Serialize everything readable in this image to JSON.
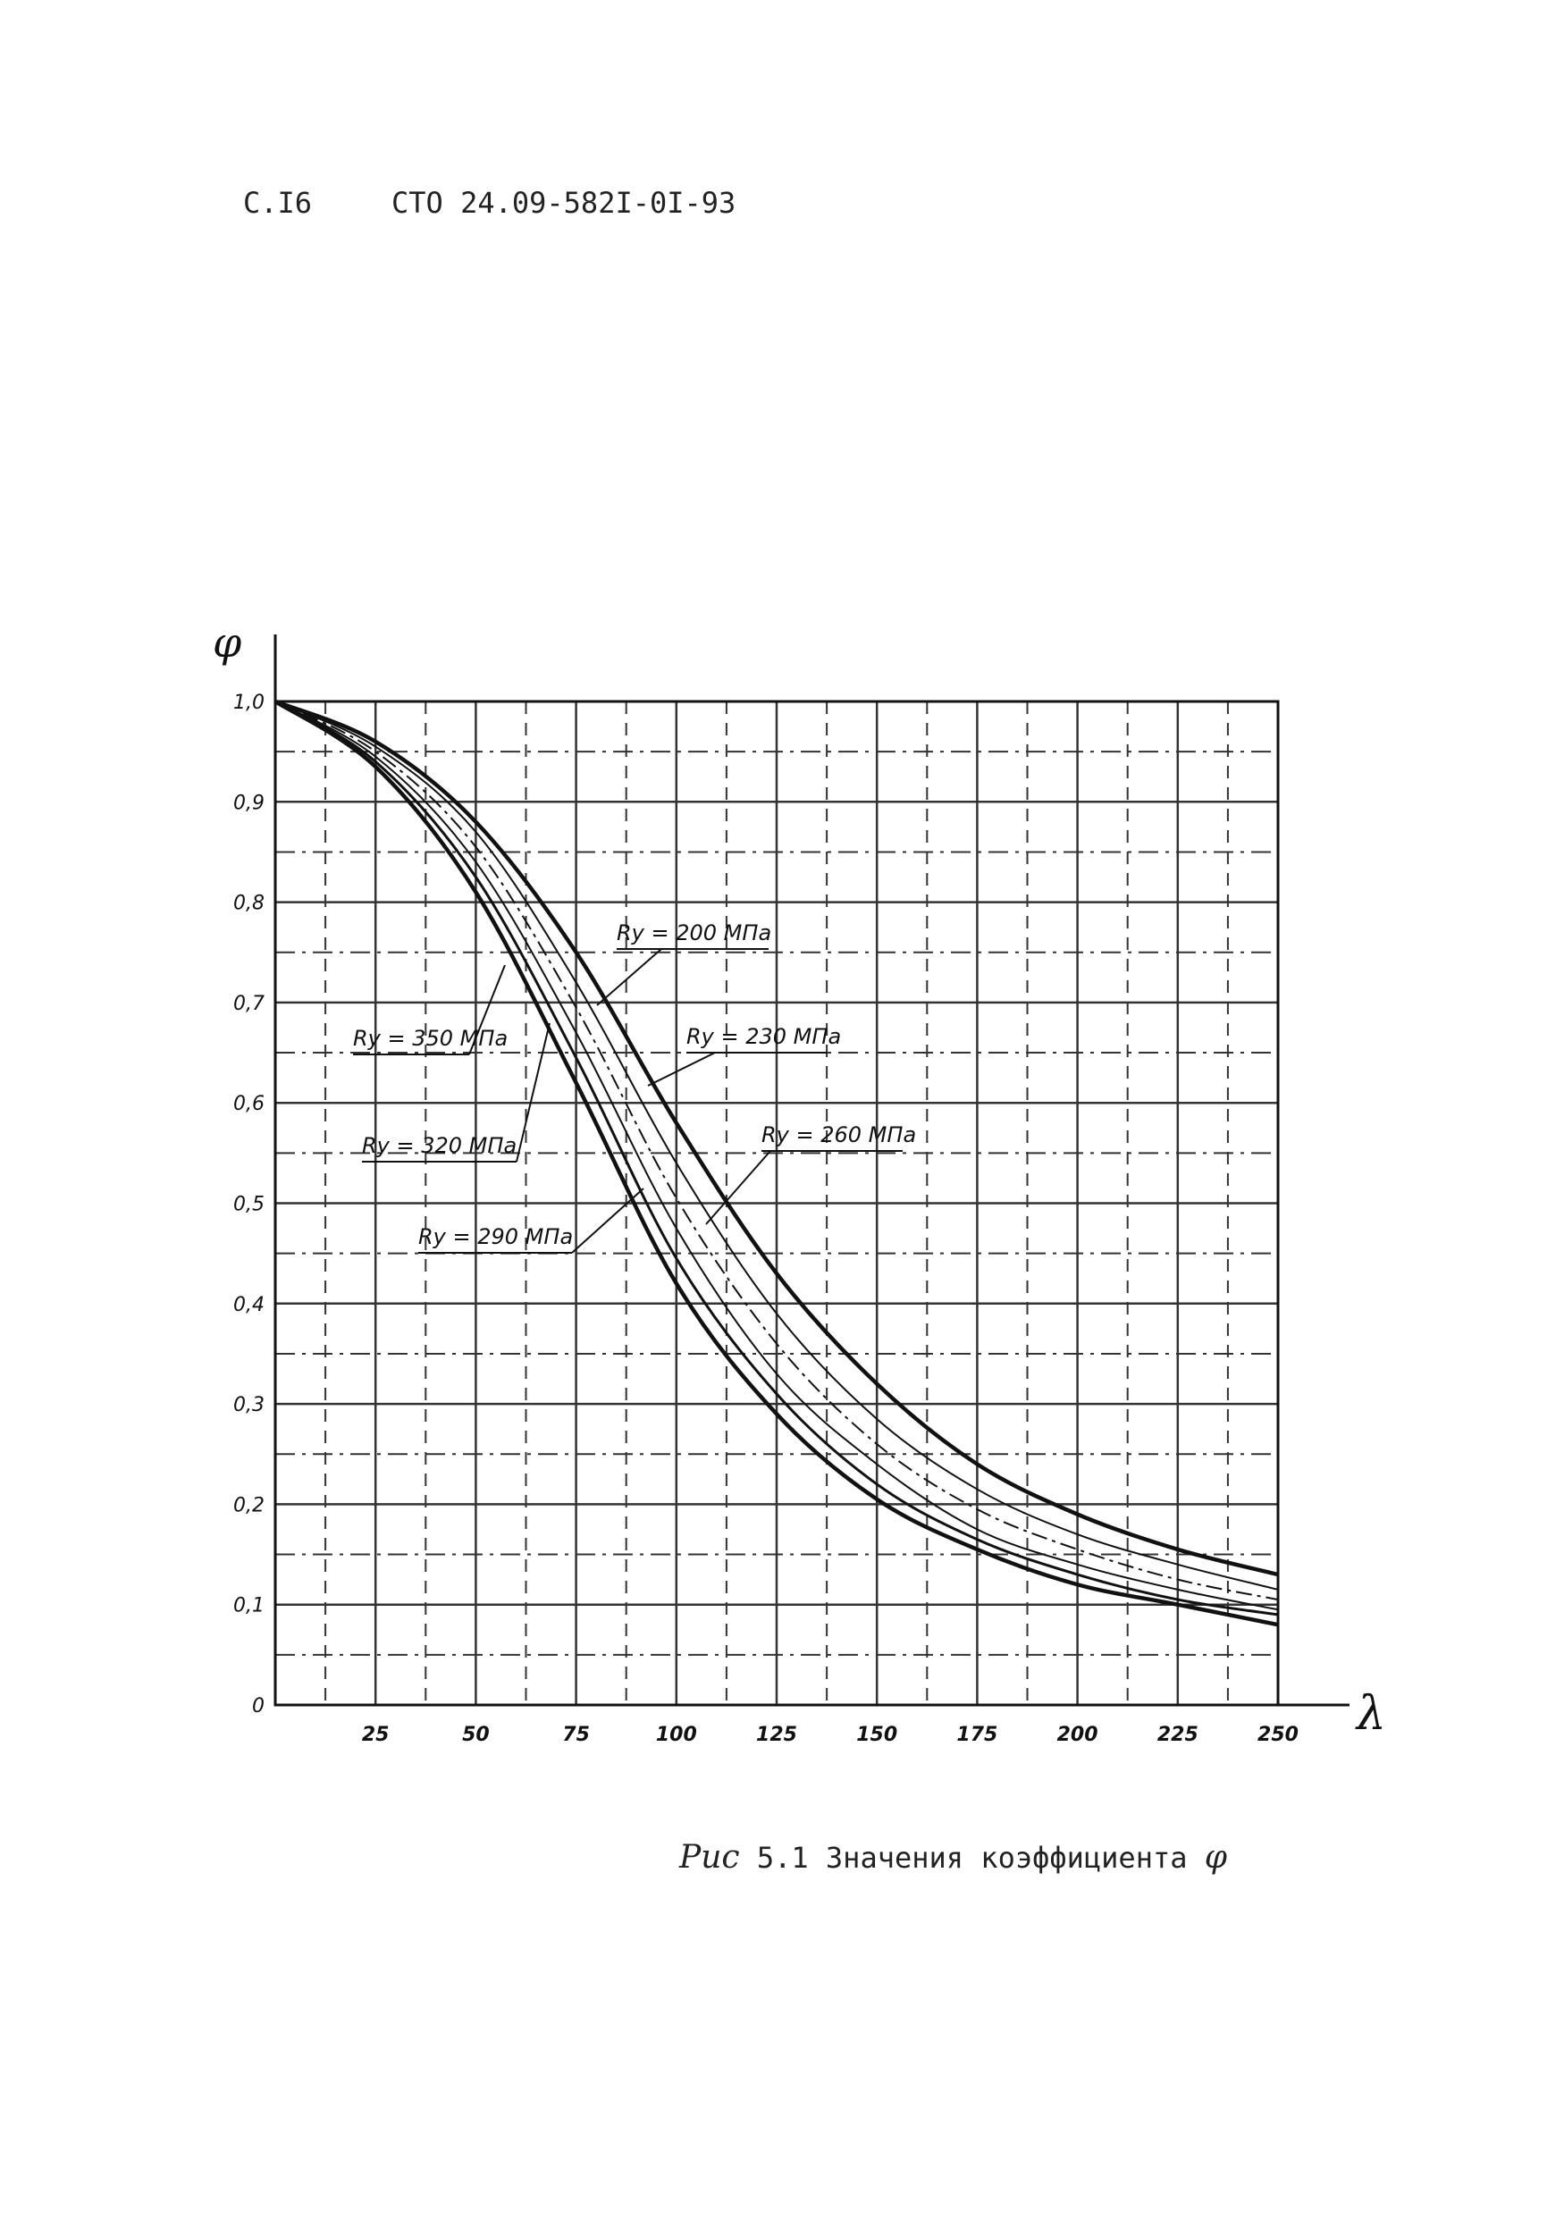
{
  "header": {
    "page_label": "С.I6",
    "doc_code": "СТО 24.09-582I-0I-93"
  },
  "caption": {
    "prefix": "Рис",
    "text": "5.1 Значения коэффициента",
    "symbol": "φ"
  },
  "chart_data": {
    "type": "line",
    "title": "",
    "xlabel": "λ",
    "ylabel": "φ",
    "xlim": [
      0,
      250
    ],
    "ylim": [
      0,
      1.0
    ],
    "grid": true,
    "x_ticks": [
      "25",
      "50",
      "75",
      "100",
      "125",
      "150",
      "175",
      "200",
      "225",
      "250"
    ],
    "y_ticks": [
      "0",
      "0,1",
      "0,2",
      "0,3",
      "0,4",
      "0,5",
      "0,6",
      "0,7",
      "0,8",
      "0,9",
      "1,0"
    ],
    "x": [
      0,
      25,
      50,
      75,
      100,
      125,
      150,
      175,
      200,
      225,
      250
    ],
    "series": [
      {
        "name": "Ry = 200 МПа",
        "values": [
          1.0,
          0.96,
          0.88,
          0.75,
          0.58,
          0.43,
          0.32,
          0.24,
          0.19,
          0.155,
          0.13
        ]
      },
      {
        "name": "Ry = 230 МПа",
        "values": [
          1.0,
          0.955,
          0.87,
          0.72,
          0.54,
          0.39,
          0.285,
          0.215,
          0.17,
          0.14,
          0.115
        ]
      },
      {
        "name": "Ry = 260 МПа",
        "values": [
          1.0,
          0.95,
          0.855,
          0.695,
          0.505,
          0.36,
          0.26,
          0.195,
          0.155,
          0.125,
          0.105
        ]
      },
      {
        "name": "Ry = 290 МПа",
        "values": [
          1.0,
          0.945,
          0.84,
          0.67,
          0.475,
          0.33,
          0.24,
          0.175,
          0.14,
          0.115,
          0.095
        ]
      },
      {
        "name": "Ry = 320 МПа",
        "values": [
          1.0,
          0.94,
          0.825,
          0.645,
          0.445,
          0.31,
          0.22,
          0.165,
          0.13,
          0.105,
          0.09
        ]
      },
      {
        "name": "Ry = 350 МПа",
        "values": [
          1.0,
          0.935,
          0.81,
          0.62,
          0.42,
          0.29,
          0.205,
          0.155,
          0.12,
          0.1,
          0.08
        ]
      }
    ]
  }
}
